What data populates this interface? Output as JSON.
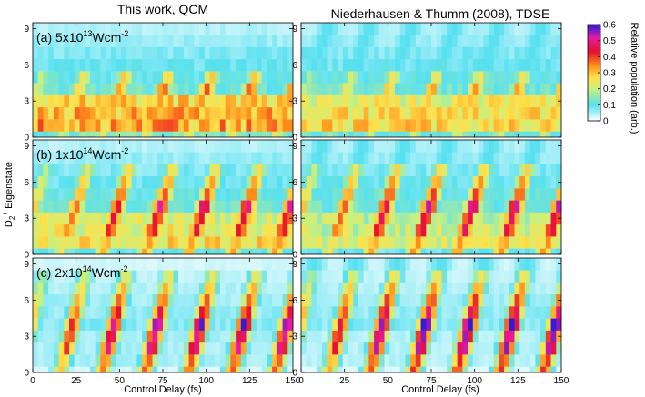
{
  "chart_data": {
    "type": "heatmap",
    "column_titles": [
      "This work, QCM",
      "Niederhausen & Thumm (2008), TDSE"
    ],
    "row_labels": [
      {
        "prefix": "(a) 5x10",
        "exponent": "13",
        "unit": "Wcm",
        "unit_exp": "-2"
      },
      {
        "prefix": "(b) 1x10",
        "exponent": "14",
        "unit": "Wcm",
        "unit_exp": "-2"
      },
      {
        "prefix": "(c) 2x10",
        "exponent": "14",
        "unit": "Wcm",
        "unit_exp": "-2"
      }
    ],
    "xlabel": "Control Delay (fs)",
    "ylabel": {
      "base": "D",
      "sub": "2",
      "sup": "+",
      "rest": " Eigenstate"
    },
    "x_ticks": [
      "0",
      "25",
      "50",
      "75",
      "100",
      "125",
      "150"
    ],
    "y_ticks": [
      "0",
      "3",
      "6",
      "9"
    ],
    "x_range": [
      0,
      150
    ],
    "y_range": [
      0,
      9.5
    ],
    "colorbar": {
      "label": "Relative population (arb.)",
      "ticks": [
        "0",
        "0.1",
        "0.2",
        "0.3",
        "0.4",
        "0.5",
        "0.6"
      ],
      "range": [
        0,
        0.6
      ],
      "colors": [
        "#ffffff",
        "#56e0f0",
        "#c8f080",
        "#ffe14a",
        "#ff8c1a",
        "#e8102c",
        "#e61aa6",
        "#2a1ad9"
      ]
    },
    "model": {
      "ridge_offsets_fs": [
        -8,
        16,
        40,
        65,
        90,
        115,
        140
      ],
      "ridge_slope_fs_per_level": [
        2.6,
        2.2,
        1.7
      ],
      "baseline_levels": [
        [
          0.14,
          0.32,
          0.3,
          0.28
        ],
        [
          0.1,
          0.26,
          0.24,
          0.22
        ],
        [
          0.02,
          0.05,
          0.05,
          0.05
        ]
      ],
      "ridge_peak": [
        0.34,
        0.45,
        0.52
      ],
      "ridge_peak_tdse": [
        0.3,
        0.47,
        0.56
      ],
      "ridge_top_level": [
        5,
        7,
        8
      ]
    }
  }
}
